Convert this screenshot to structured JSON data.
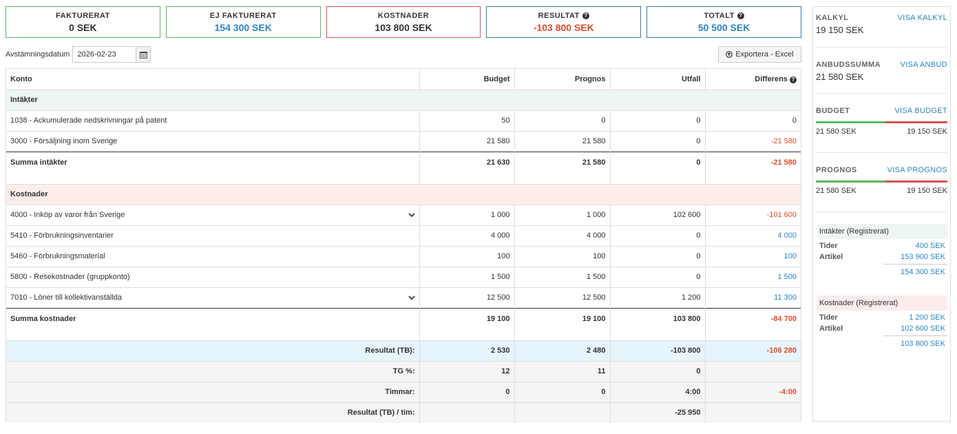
{
  "cards": [
    {
      "label": "FAKTURERAT",
      "value": "0 SEK",
      "help": false
    },
    {
      "label": "EJ FAKTURERAT",
      "value": "154 300 SEK",
      "help": false
    },
    {
      "label": "KOSTNADER",
      "value": "103 800 SEK",
      "help": false
    },
    {
      "label": "RESULTAT",
      "value": "-103 800 SEK",
      "help": true
    },
    {
      "label": "TOTALT",
      "value": "50 500 SEK",
      "help": true
    }
  ],
  "date": {
    "label": "Avstämningsdatum",
    "value": "2026-02-23"
  },
  "export_label": "Exportera - Excel",
  "table": {
    "headers": {
      "konto": "Konto",
      "budget": "Budget",
      "prognos": "Prognos",
      "utfall": "Utfall",
      "differens": "Differens"
    },
    "income_section": "Intäkter",
    "income_rows": [
      {
        "konto": "1038 - Ackumulerade nedskrivningar på patent",
        "budget": "50",
        "prognos": "0",
        "utfall": "0",
        "differens": "0"
      },
      {
        "konto": "3000 - Försäljning inom Sverige",
        "budget": "21 580",
        "prognos": "21 580",
        "utfall": "0",
        "differens": "-21 580"
      }
    ],
    "income_sum": {
      "konto": "Summa intäkter",
      "budget": "21 630",
      "prognos": "21 580",
      "utfall": "0",
      "differens": "-21 580"
    },
    "cost_section": "Kostnader",
    "cost_rows": [
      {
        "konto": "4000 - Inköp av varor från Sverige",
        "budget": "1 000",
        "prognos": "1 000",
        "utfall": "102 600",
        "differens": "-101 600"
      },
      {
        "konto": "5410 - Förbrukningsinventarier",
        "budget": "4 000",
        "prognos": "4 000",
        "utfall": "0",
        "differens": "4 000"
      },
      {
        "konto": "5460 - Förbrukningsmaterial",
        "budget": "100",
        "prognos": "100",
        "utfall": "0",
        "differens": "100"
      },
      {
        "konto": "5800 - Resekostnader (gruppkonto)",
        "budget": "1 500",
        "prognos": "1 500",
        "utfall": "0",
        "differens": "1 500"
      },
      {
        "konto": "7010 - Löner till kollektivanställda",
        "budget": "12 500",
        "prognos": "12 500",
        "utfall": "1 200",
        "differens": "11 300"
      }
    ],
    "cost_sum": {
      "konto": "Summa kostnader",
      "budget": "19 100",
      "prognos": "19 100",
      "utfall": "103 800",
      "differens": "-84 700"
    },
    "result": {
      "label": "Resultat (TB):",
      "budget": "2 530",
      "prognos": "2 480",
      "utfall": "-103 800",
      "differens": "-106 280"
    },
    "tg": {
      "label": "TG %:",
      "budget": "12",
      "prognos": "11",
      "utfall": "0",
      "differens": ""
    },
    "hours": {
      "label": "Timmar:",
      "budget": "0",
      "prognos": "0",
      "utfall": "4:00",
      "differens": "-4:00"
    },
    "per_hour": {
      "label": "Resultat (TB) / tim:",
      "budget": "",
      "prognos": "",
      "utfall": "-25 950",
      "differens": ""
    }
  },
  "sidebar": {
    "kalkyl": {
      "label": "KALKYL",
      "link": "VISA KALKYL",
      "value": "19 150 SEK"
    },
    "anbud": {
      "label": "ANBUDSSUMMA",
      "link": "VISA ANBUD",
      "value": "21 580 SEK"
    },
    "budget": {
      "label": "BUDGET",
      "link": "VISA BUDGET",
      "left": "21 580 SEK",
      "right": "19 150 SEK",
      "green_fraction": 0.53
    },
    "prognos": {
      "label": "PROGNOS",
      "link": "VISA PROGNOS",
      "left": "21 580 SEK",
      "right": "19 150 SEK",
      "green_fraction": 0.53
    },
    "income_reg": {
      "title": "Intäkter (Registrerat)",
      "rows": [
        {
          "k": "Tider",
          "v": "400 SEK"
        },
        {
          "k": "Artikel",
          "v": "153 900 SEK"
        }
      ],
      "total": "154 300 SEK"
    },
    "cost_reg": {
      "title": "Kostnader (Registrerat)",
      "rows": [
        {
          "k": "Tider",
          "v": "1 200 SEK"
        },
        {
          "k": "Artikel",
          "v": "102 600 SEK"
        }
      ],
      "total": "103 800 SEK"
    }
  },
  "colors": {
    "positive": "#2a85c7",
    "negative": "#e04c2e",
    "income_bg": "#eef6f1",
    "cost_bg": "#fcedeb",
    "result_bg": "#e6f4fb"
  }
}
